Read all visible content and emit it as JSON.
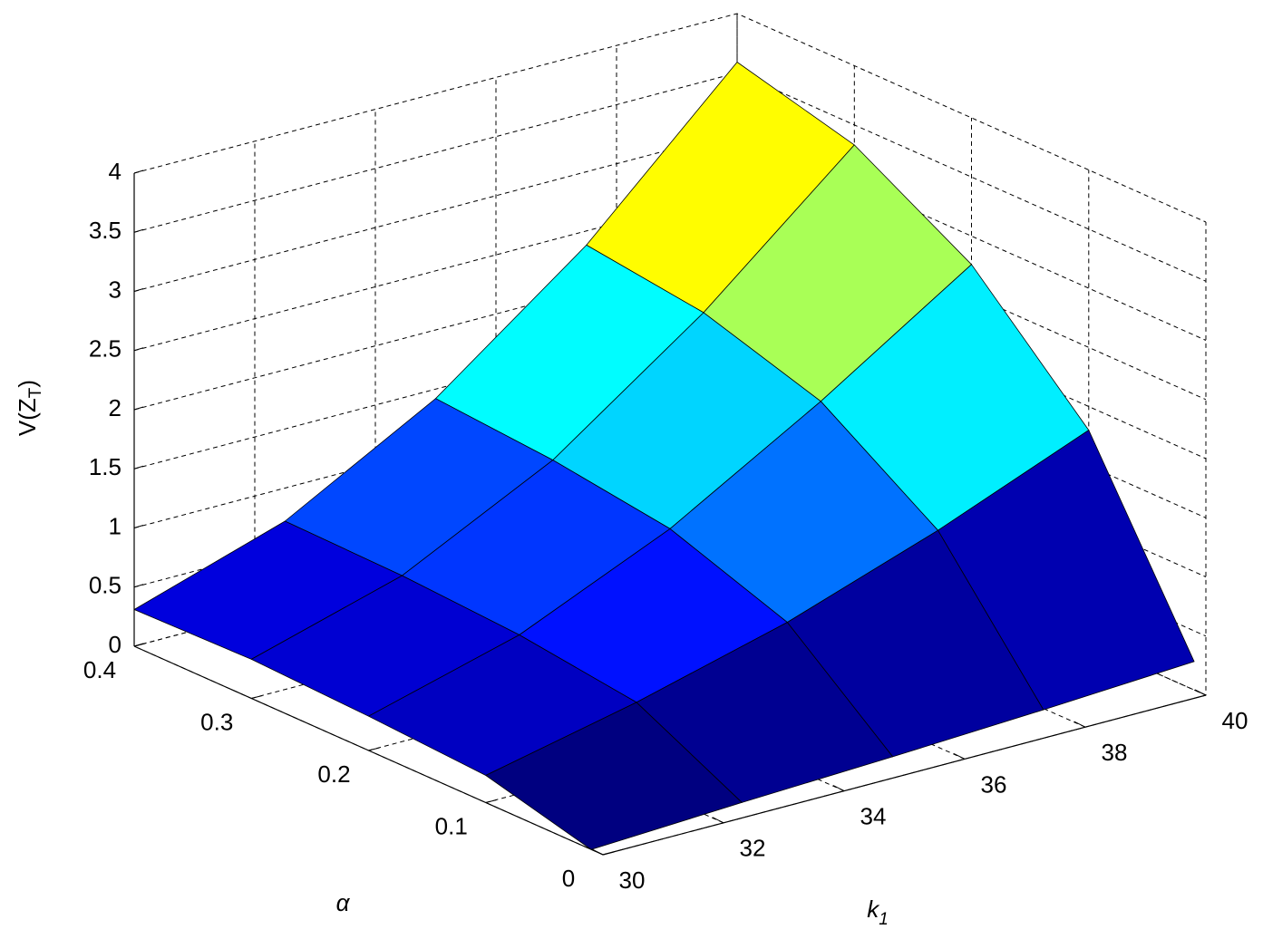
{
  "chart_data": {
    "type": "surface",
    "xlabel": [
      "k",
      "1"
    ],
    "ylabel": "α",
    "zlabel": [
      "V(Z",
      "T",
      ")"
    ],
    "x": [
      30,
      32.5,
      35,
      37.5,
      40
    ],
    "y": [
      0.01,
      0.1,
      0.2,
      0.3,
      0.4
    ],
    "z": [
      [
        0,
        0.06,
        0.11,
        0.17,
        0.24
      ],
      [
        0.23,
        0.51,
        0.85,
        1.29,
        1.8
      ],
      [
        0.29,
        0.64,
        1.2,
        1.94,
        2.76
      ],
      [
        0.33,
        0.7,
        1.34,
        2.25,
        3.33
      ],
      [
        0.31,
        0.72,
        1.42,
        2.38,
        3.59
      ]
    ],
    "xlim": [
      30,
      40
    ],
    "xticks": [
      30,
      32,
      34,
      36,
      38,
      40
    ],
    "ylim": [
      0,
      0.4
    ],
    "yticks": [
      0,
      0.1,
      0.2,
      0.3,
      0.4
    ],
    "zlim": [
      0,
      4
    ],
    "zticks": [
      0,
      0.5,
      1,
      1.5,
      2,
      2.5,
      3,
      3.5,
      4
    ],
    "colormap": "jet",
    "grid": true
  }
}
